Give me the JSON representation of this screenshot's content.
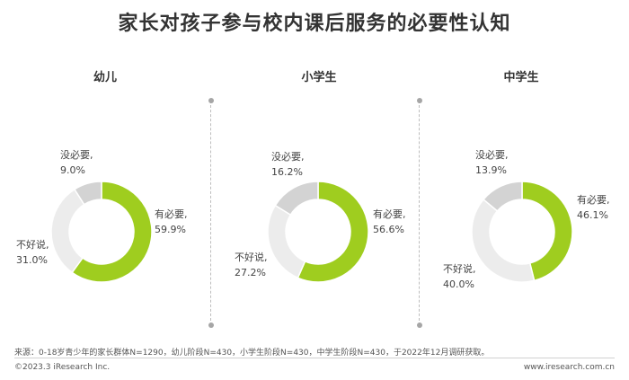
{
  "title": "家长对孩子参与校内课后服务的必要性认知",
  "colors": {
    "necessary": "#9fcd1f",
    "not_sure": "#ececec",
    "not_necessary": "#d3d3d3"
  },
  "chart_data": [
    {
      "type": "pie",
      "title": "幼儿",
      "slices": [
        {
          "label": "有必要,",
          "value": 59.9,
          "value_text": "59.9%"
        },
        {
          "label": "不好说,",
          "value": 31.0,
          "value_text": "31.0%"
        },
        {
          "label": "没必要,",
          "value": 9.0,
          "value_text": "9.0%"
        }
      ]
    },
    {
      "type": "pie",
      "title": "小学生",
      "slices": [
        {
          "label": "有必要,",
          "value": 56.6,
          "value_text": "56.6%"
        },
        {
          "label": "不好说,",
          "value": 27.2,
          "value_text": "27.2%"
        },
        {
          "label": "没必要,",
          "value": 16.2,
          "value_text": "16.2%"
        }
      ]
    },
    {
      "type": "pie",
      "title": "中学生",
      "slices": [
        {
          "label": "有必要,",
          "value": 46.1,
          "value_text": "46.1%"
        },
        {
          "label": "不好说,",
          "value": 40.0,
          "value_text": "40.0%"
        },
        {
          "label": "没必要,",
          "value": 13.9,
          "value_text": "13.9%"
        }
      ]
    }
  ],
  "source": "来源：0-18岁青少年的家长群体N=1290，幼儿阶段N=430，小学生阶段N=430，中学生阶段N=430，于2022年12月调研获取。",
  "copyright": "©2023.3 iResearch Inc.",
  "website": "www.iresearch.com.cn"
}
